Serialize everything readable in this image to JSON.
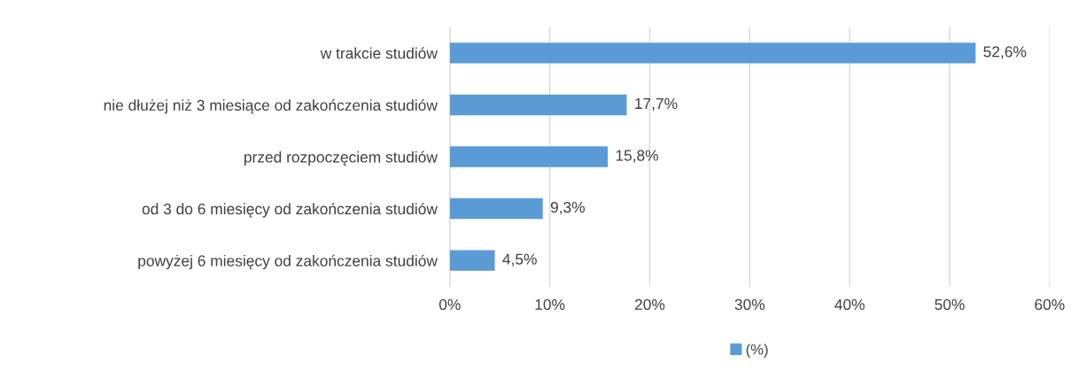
{
  "chart_data": {
    "type": "bar",
    "orientation": "horizontal",
    "categories": [
      "w trakcie studiów",
      "nie dłużej niż 3 miesiące od zakończenia studiów",
      "przed rozpoczęciem studiów",
      "od 3 do 6 miesięcy od zakończenia studiów",
      "powyżej 6 miesięcy od zakończenia studiów"
    ],
    "series": [
      {
        "name": "(%)",
        "color": "#5b9bd5",
        "values": [
          52.6,
          17.7,
          15.8,
          9.3,
          4.5
        ],
        "value_labels": [
          "52,6%",
          "17,7%",
          "15,8%",
          "9,3%",
          "4,5%"
        ]
      }
    ],
    "xlim": [
      0,
      60
    ],
    "xticks": [
      {
        "value": 0,
        "label": "0%"
      },
      {
        "value": 10,
        "label": "10%"
      },
      {
        "value": 20,
        "label": "20%"
      },
      {
        "value": 30,
        "label": "30%"
      },
      {
        "value": 40,
        "label": "40%"
      },
      {
        "value": 50,
        "label": "50%"
      },
      {
        "value": 60,
        "label": "60%"
      }
    ],
    "grid": "x",
    "legend": "bottom"
  }
}
